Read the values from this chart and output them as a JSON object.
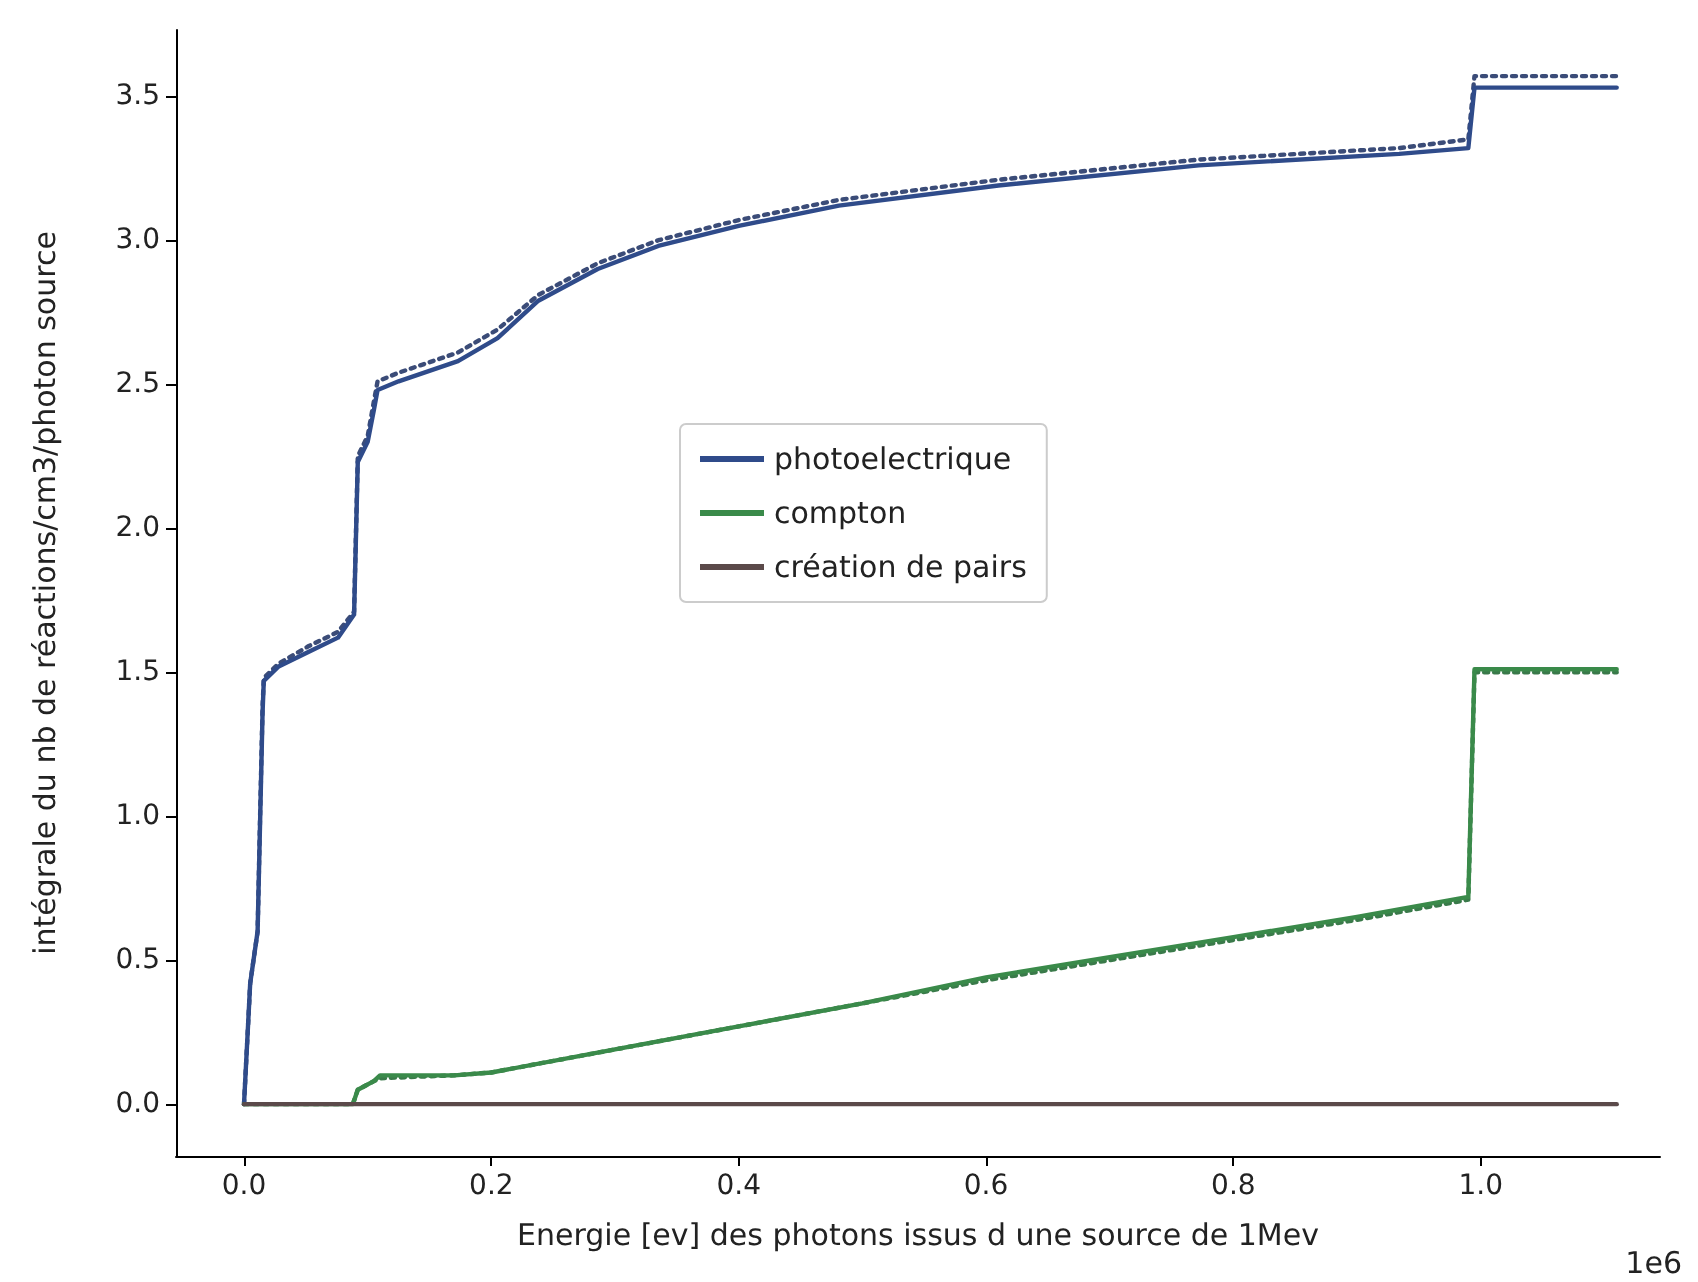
{
  "chart_data": {
    "type": "line",
    "xlabel": "Energie [ev] des photons issus d une source de 1Mev",
    "ylabel": "intégrale du nb de réactions/cm3/photon source",
    "xlim": [
      -0.055,
      1.145
    ],
    "ylim": [
      -0.18,
      3.73
    ],
    "xticks": [
      {
        "value": 0,
        "label": "0.0"
      },
      0.2,
      0.4,
      0.6,
      0.8,
      {
        "value": 1,
        "label": "1.0"
      }
    ],
    "yticks": [
      {
        "value": 0,
        "label": "0.0"
      },
      0.5,
      {
        "value": 1,
        "label": "1.0"
      },
      1.5,
      {
        "value": 2,
        "label": "2.0"
      },
      2.5,
      {
        "value": 3,
        "label": "3.0"
      },
      3.5
    ],
    "grid": false,
    "legend": "center",
    "marker": "none",
    "annotations": [
      "1e6"
    ],
    "series": [
      {
        "color": "#3b4c78",
        "line_style": "dotted",
        "x": [
          0,
          0.005,
          0.011,
          0.013,
          0.015,
          0.016,
          0.028,
          0.052,
          0.076,
          0.089,
          0.092,
          0.1,
          0.105,
          0.108,
          0.125,
          0.173,
          0.205,
          0.238,
          0.286,
          0.335,
          0.4,
          0.481,
          0.61,
          0.772,
          0.934,
          0.99,
          0.995,
          1.11
        ],
        "values": [
          0,
          0.42,
          0.6,
          1.0,
          1.38,
          1.48,
          1.53,
          1.59,
          1.64,
          1.71,
          2.25,
          2.32,
          2.44,
          2.51,
          2.54,
          2.61,
          2.69,
          2.81,
          2.92,
          3.0,
          3.07,
          3.14,
          3.21,
          3.28,
          3.32,
          3.35,
          3.57,
          3.57
        ]
      },
      {
        "name": "photoelectrique",
        "color": "#2f4b8a",
        "line_style": "solid",
        "x": [
          0,
          0.005,
          0.011,
          0.013,
          0.015,
          0.016,
          0.028,
          0.052,
          0.076,
          0.089,
          0.092,
          0.1,
          0.105,
          0.108,
          0.125,
          0.173,
          0.205,
          0.238,
          0.286,
          0.335,
          0.4,
          0.481,
          0.61,
          0.772,
          0.934,
          0.99,
          0.995,
          1.11
        ],
        "values": [
          0,
          0.42,
          0.6,
          0.98,
          1.36,
          1.47,
          1.52,
          1.57,
          1.62,
          1.7,
          2.23,
          2.3,
          2.41,
          2.48,
          2.51,
          2.58,
          2.66,
          2.79,
          2.9,
          2.98,
          3.05,
          3.12,
          3.19,
          3.26,
          3.3,
          3.32,
          3.53,
          3.53
        ]
      },
      {
        "color": "#3a7a4a",
        "line_style": "dotted",
        "x": [
          0,
          0.088,
          0.092,
          0.105,
          0.11,
          0.17,
          0.2,
          0.3,
          0.4,
          0.5,
          0.6,
          0.7,
          0.8,
          0.9,
          0.99,
          0.995,
          1.11
        ],
        "values": [
          0,
          0,
          0.05,
          0.08,
          0.09,
          0.1,
          0.11,
          0.19,
          0.27,
          0.35,
          0.43,
          0.5,
          0.57,
          0.64,
          0.71,
          1.5,
          1.5
        ]
      },
      {
        "name": "compton",
        "color": "#3a8a4a",
        "line_style": "solid",
        "x": [
          0,
          0.088,
          0.092,
          0.105,
          0.11,
          0.17,
          0.2,
          0.3,
          0.4,
          0.5,
          0.6,
          0.7,
          0.8,
          0.9,
          0.99,
          0.995,
          1.11
        ],
        "values": [
          0,
          0,
          0.05,
          0.08,
          0.1,
          0.1,
          0.11,
          0.19,
          0.27,
          0.35,
          0.44,
          0.51,
          0.58,
          0.65,
          0.72,
          1.51,
          1.51
        ]
      },
      {
        "name": "création de pairs",
        "color": "#5b4a4a",
        "line_style": "solid",
        "x": [
          0,
          1.11
        ],
        "values": [
          0,
          0
        ]
      }
    ]
  }
}
